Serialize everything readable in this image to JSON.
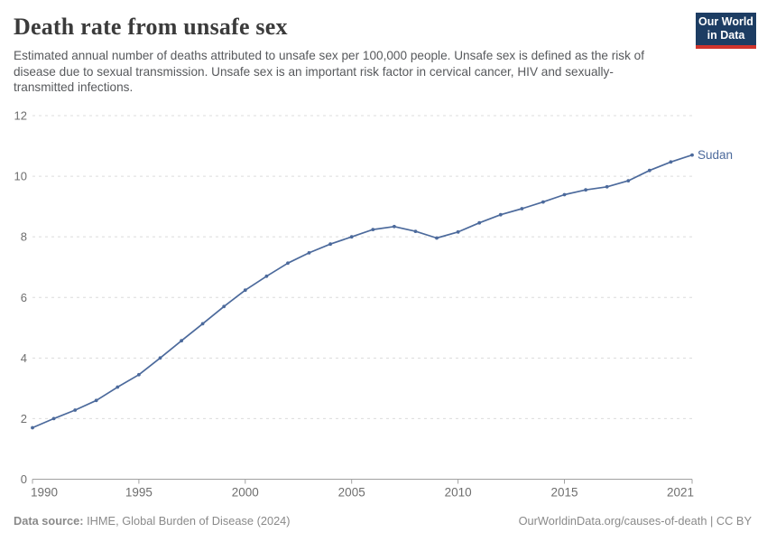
{
  "header": {
    "title": "Death rate from unsafe sex",
    "subtitle": "Estimated annual number of deaths attributed to unsafe sex per 100,000 people. Unsafe sex is defined as the risk of disease due to sexual transmission. Unsafe sex is an important risk factor in cervical cancer, HIV and sexually-transmitted infections.",
    "logo": {
      "line1": "Our World",
      "line2": "in Data"
    }
  },
  "chart_data": {
    "type": "line",
    "title": "Death rate from unsafe sex",
    "xlabel": "",
    "ylabel": "",
    "xlim": [
      1990,
      2021
    ],
    "ylim": [
      0,
      12
    ],
    "xticks": [
      1990,
      1995,
      2000,
      2005,
      2010,
      2015,
      2021
    ],
    "yticks": [
      0,
      2,
      4,
      6,
      8,
      10,
      12
    ],
    "grid": "horizontal-dashed",
    "legend_position": "end-of-line-label",
    "series": [
      {
        "name": "Sudan",
        "color": "#4c6a9c",
        "x": [
          1990,
          1991,
          1992,
          1993,
          1994,
          1995,
          1996,
          1997,
          1998,
          1999,
          2000,
          2001,
          2002,
          2003,
          2004,
          2005,
          2006,
          2007,
          2008,
          2009,
          2010,
          2011,
          2012,
          2013,
          2014,
          2015,
          2016,
          2017,
          2018,
          2019,
          2020,
          2021
        ],
        "values": [
          1.7,
          2.0,
          2.28,
          2.6,
          3.04,
          3.45,
          4.0,
          4.57,
          5.13,
          5.7,
          6.24,
          6.7,
          7.13,
          7.47,
          7.76,
          8.0,
          8.24,
          8.34,
          8.18,
          7.96,
          8.16,
          8.46,
          8.73,
          8.93,
          9.15,
          9.39,
          9.55,
          9.65,
          9.85,
          10.19,
          10.47,
          10.7
        ]
      }
    ]
  },
  "footer": {
    "source_label": "Data source:",
    "source_text": " IHME, Global Burden of Disease (2024)",
    "right_text": "OurWorldinData.org/causes-of-death | CC BY"
  },
  "theme": {
    "line_color": "#4c6a9c",
    "grid_color": "#dcdcdc",
    "axis_color": "#a1a1a1",
    "tick_label_color": "#6e6e6e",
    "title_color": "#3b3b3b",
    "subtitle_color": "#57595c",
    "footer_color": "#8a8a8a",
    "logo_bg": "#1d3d63",
    "logo_bar": "#d0342c"
  }
}
